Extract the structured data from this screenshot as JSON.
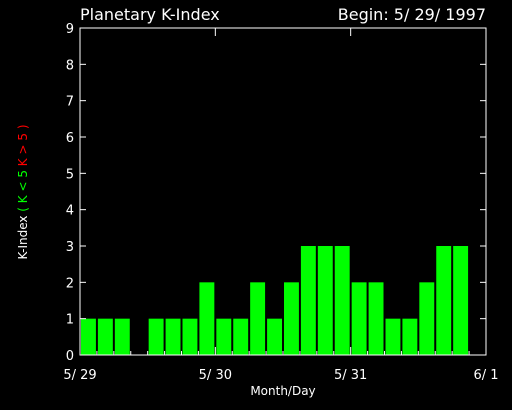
{
  "chart_data": {
    "type": "bar",
    "title": "Planetary K-Index",
    "subtitle": "Begin: 5/ 29/ 1997",
    "xlabel": "Month/Day",
    "ylabel_parts": {
      "main": "K-Index",
      "low": "( K < 5",
      "high": "K > 5 )"
    },
    "ylim": [
      0,
      9
    ],
    "yticks": [
      "0",
      "1",
      "2",
      "3",
      "4",
      "5",
      "6",
      "7",
      "8",
      "9"
    ],
    "xticks": [
      "5/ 29",
      "5/ 30",
      "5/ 31",
      "6/ 1"
    ],
    "bar_color_low": "#00ff00",
    "bar_color_high": "#ff0000",
    "values": [
      1,
      1,
      1,
      0,
      1,
      1,
      1,
      2,
      1,
      1,
      2,
      1,
      2,
      3,
      3,
      3,
      2,
      2,
      1,
      1,
      2,
      3,
      3,
      0
    ]
  }
}
